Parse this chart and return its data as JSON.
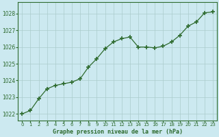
{
  "x": [
    0,
    1,
    2,
    3,
    4,
    5,
    6,
    7,
    8,
    9,
    10,
    11,
    12,
    13,
    14,
    15,
    16,
    17,
    18,
    19,
    20,
    21,
    22,
    23
  ],
  "y": [
    1022.0,
    1022.2,
    1022.9,
    1023.5,
    1023.7,
    1023.8,
    1023.9,
    1024.1,
    1024.8,
    1025.3,
    1025.9,
    1026.3,
    1026.5,
    1026.6,
    1026.0,
    1026.0,
    1025.95,
    1026.05,
    1026.3,
    1026.7,
    1027.25,
    1027.5,
    1028.05,
    1028.1
  ],
  "line_color": "#2d6a2d",
  "marker_color": "#2d6a2d",
  "bg_color": "#cce9f0",
  "grid_color": "#aacccc",
  "axis_label_color": "#2d6a2d",
  "tick_label_color": "#2d6a2d",
  "ylabel_ticks": [
    1022,
    1023,
    1024,
    1025,
    1026,
    1027,
    1028
  ],
  "xlabel": "Graphe pression niveau de la mer (hPa)",
  "ylim": [
    1021.6,
    1028.7
  ],
  "xlim": [
    -0.5,
    23.5
  ]
}
